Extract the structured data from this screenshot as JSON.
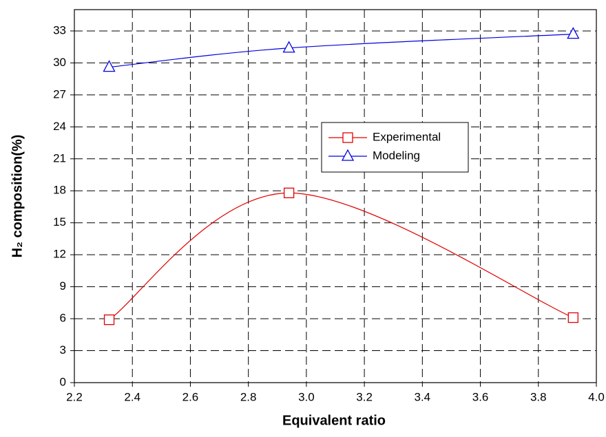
{
  "chart_data": {
    "type": "line",
    "x_label": "Equivalent ratio",
    "y_label": "H₂ composition(%)",
    "xlim": [
      2.2,
      4.0
    ],
    "xticks": [
      2.2,
      2.4,
      2.6,
      2.8,
      {
        "value": 3,
        "label": "3.0"
      },
      3.2,
      3.4,
      3.6,
      3.8,
      {
        "value": 4,
        "label": "4.0"
      }
    ],
    "ylim": [
      0,
      35
    ],
    "yticks": [
      0,
      3,
      6,
      9,
      12,
      15,
      18,
      21,
      24,
      27,
      30,
      33
    ],
    "grid": true,
    "legend": "upper-center",
    "series": [
      {
        "name": "Experimental",
        "color": "#e00000",
        "marker": "square",
        "x": [
          2.32,
          2.94,
          3.92
        ],
        "values": [
          5.9,
          17.8,
          6.1
        ]
      },
      {
        "name": "Modeling",
        "color": "#0000e0",
        "marker": "triangle",
        "x": [
          2.32,
          2.94,
          3.92
        ],
        "values": [
          29.6,
          31.4,
          32.7
        ]
      }
    ]
  }
}
